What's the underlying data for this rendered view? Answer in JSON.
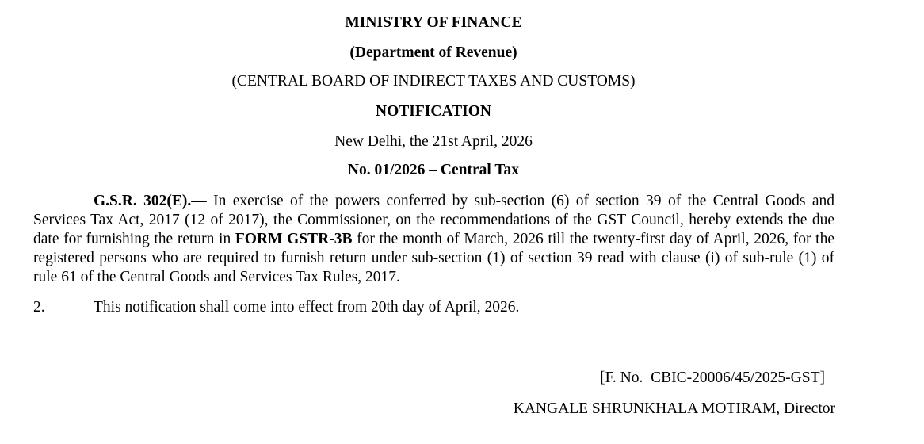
{
  "header": {
    "ministry": "MINISTRY OF FINANCE",
    "department": "(Department of Revenue)",
    "board": "(CENTRAL BOARD OF INDIRECT TAXES AND CUSTOMS)",
    "type": "NOTIFICATION",
    "place_date": "New Delhi, the 21st April, 2026",
    "number": "No. 01/2026 – Central Tax"
  },
  "body": {
    "gsr_ref": "G.S.R. 302(E).—",
    "para1_a": " In exercise of the powers conferred by sub-section (6) of section 39 of the Central Goods and Services Tax Act, 2017 (12 of 2017), the Commissioner, on the recommendations of the GST Council, hereby extends the due date for furnishing the return in ",
    "form": "FORM GSTR-3B",
    "para1_b": " for the month of March, 2026 till the twenty-first day of April, 2026, for the registered persons who are required to furnish return under sub-section (1) of section 39 read with clause (i) of sub-rule (1) of rule 61 of the Central Goods and Services Tax Rules, 2017.",
    "para2_num": "2.",
    "para2_text": "This notification shall come into effect from 20th day of April, 2026."
  },
  "footer": {
    "file_no": "[F. No.  CBIC-20006/45/2025-GST]",
    "signatory": "KANGALE SHRUNKHALA MOTIRAM, Director"
  }
}
